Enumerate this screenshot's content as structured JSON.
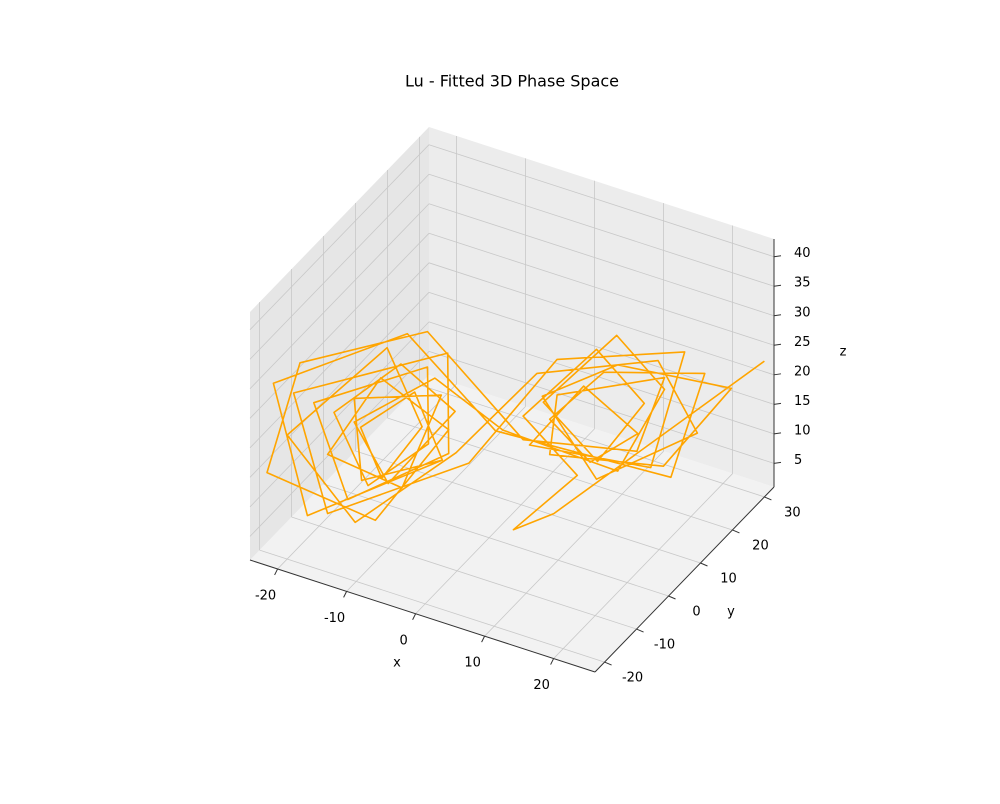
{
  "chart_data": {
    "type": "line3d",
    "title": "Lu - Fitted 3D Phase Space",
    "xlabel": "x",
    "ylabel": "y",
    "zlabel": "z",
    "color": "#ffa500",
    "grid": true,
    "xlim": [
      -24,
      26
    ],
    "ylim": [
      -23,
      33
    ],
    "zlim": [
      1,
      43
    ],
    "xticks": [
      -20,
      -10,
      0,
      10,
      20
    ],
    "yticks": [
      -20,
      -10,
      0,
      10,
      20,
      30
    ],
    "zticks": [
      5,
      10,
      15,
      20,
      25,
      30,
      35,
      40
    ],
    "x": [
      26,
      14,
      10,
      10,
      4,
      10,
      16,
      12,
      6,
      12,
      18,
      14,
      2,
      -6,
      -14,
      -10,
      -4,
      -10,
      -16,
      -12,
      -6,
      -8,
      -18,
      -14,
      -4,
      -6,
      -20,
      -16,
      -2,
      8,
      20,
      16,
      4,
      10,
      16,
      10,
      6,
      12,
      22,
      18,
      0,
      -10,
      -22,
      -18,
      -4,
      -8,
      -14,
      -10,
      -6,
      -12,
      -20,
      -12,
      -2,
      6,
      18,
      20,
      10,
      4,
      14,
      24,
      16,
      6,
      8,
      18,
      14,
      4,
      -8,
      -20,
      -22,
      -10,
      -4,
      -12,
      -16,
      -8,
      -6,
      -14,
      -12,
      -4
    ],
    "y": [
      30,
      -10,
      -14,
      6,
      2,
      12,
      14,
      8,
      4,
      14,
      16,
      10,
      0,
      -4,
      -12,
      -10,
      -2,
      -6,
      -14,
      -12,
      -6,
      -2,
      -16,
      -14,
      -4,
      0,
      -18,
      -16,
      -2,
      4,
      18,
      16,
      4,
      8,
      12,
      10,
      6,
      10,
      20,
      18,
      2,
      -4,
      -20,
      -18,
      -6,
      -6,
      -10,
      -12,
      -8,
      -6,
      -20,
      -16,
      -6,
      2,
      14,
      22,
      12,
      8,
      10,
      24,
      20,
      6,
      4,
      16,
      16,
      2,
      -2,
      -16,
      -22,
      -14,
      -4,
      -8,
      -16,
      -10,
      -2,
      -12,
      -14,
      -6
    ],
    "z": [
      24,
      16,
      14,
      12,
      22,
      30,
      22,
      14,
      24,
      32,
      24,
      12,
      20,
      28,
      22,
      12,
      22,
      30,
      24,
      12,
      18,
      28,
      26,
      10,
      16,
      30,
      28,
      8,
      14,
      32,
      30,
      10,
      16,
      26,
      18,
      12,
      20,
      28,
      26,
      8,
      18,
      34,
      30,
      8,
      16,
      26,
      20,
      14,
      22,
      32,
      22,
      8,
      18,
      30,
      30,
      14,
      8,
      22,
      30,
      22,
      8,
      14,
      26,
      26,
      12,
      18,
      34,
      32,
      16,
      8,
      20,
      28,
      18,
      12,
      24,
      26,
      14,
      16
    ]
  }
}
